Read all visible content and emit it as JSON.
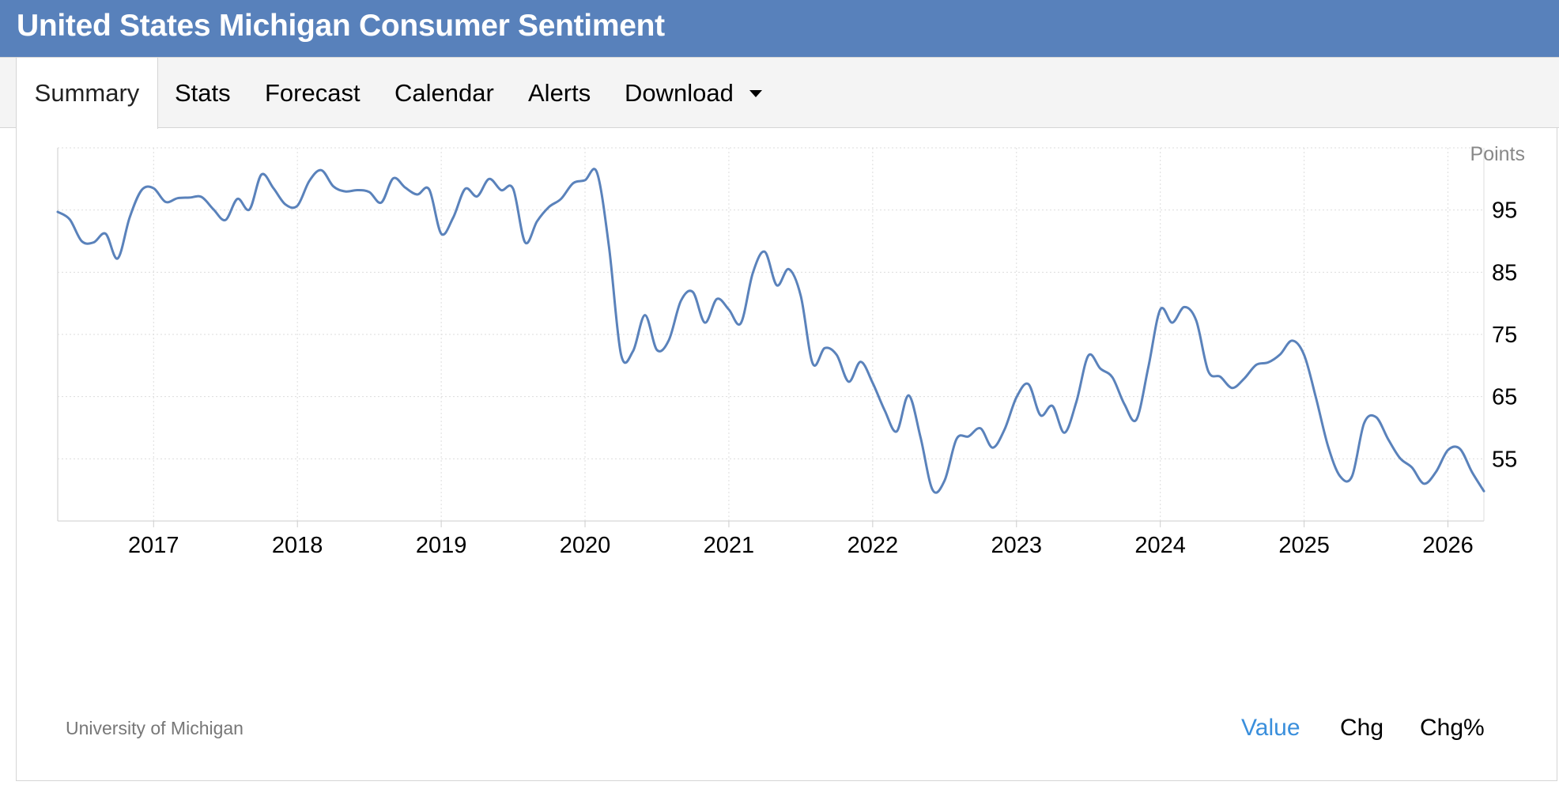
{
  "page": {
    "title": "United States Michigan Consumer Sentiment",
    "tabs": [
      "Summary",
      "Stats",
      "Forecast",
      "Calendar",
      "Alerts",
      "Download"
    ],
    "active_tab": "Summary",
    "source": "University of Michigan",
    "toggles": [
      "Value",
      "Chg",
      "Chg%"
    ],
    "active_toggle": "Value"
  },
  "colors": {
    "header_bg": "#5881bb",
    "line": "#5a82bb",
    "active_toggle": "#3a8fdc",
    "grid": "#dddddd"
  },
  "chart_data": {
    "type": "line",
    "unit": "Points",
    "x_ticks": [
      "2017",
      "2018",
      "2019",
      "2020",
      "2021",
      "2022",
      "2023",
      "2024",
      "2025",
      "2026"
    ],
    "y_ticks": [
      55,
      65,
      75,
      85,
      95
    ],
    "ylim": [
      45,
      105
    ],
    "xlim": [
      "2016-05",
      "2026-04"
    ],
    "grid": "dotted",
    "series": [
      {
        "x": [
          "2016-05",
          "2016-06",
          "2016-07",
          "2016-08",
          "2016-09",
          "2016-10",
          "2016-11",
          "2016-12",
          "2017-01",
          "2017-02",
          "2017-03",
          "2017-04",
          "2017-05",
          "2017-06",
          "2017-07",
          "2017-08",
          "2017-09",
          "2017-10",
          "2017-11",
          "2017-12",
          "2018-01",
          "2018-02",
          "2018-03",
          "2018-04",
          "2018-05",
          "2018-06",
          "2018-07",
          "2018-08",
          "2018-09",
          "2018-10",
          "2018-11",
          "2018-12",
          "2019-01",
          "2019-02",
          "2019-03",
          "2019-04",
          "2019-05",
          "2019-06",
          "2019-07",
          "2019-08",
          "2019-09",
          "2019-10",
          "2019-11",
          "2019-12",
          "2020-01",
          "2020-02",
          "2020-03",
          "2020-04",
          "2020-05",
          "2020-06",
          "2020-07",
          "2020-08",
          "2020-09",
          "2020-10",
          "2020-11",
          "2020-12",
          "2021-01",
          "2021-02",
          "2021-03",
          "2021-04",
          "2021-05",
          "2021-06",
          "2021-07",
          "2021-08",
          "2021-09",
          "2021-10",
          "2021-11",
          "2021-12",
          "2022-01",
          "2022-02",
          "2022-03",
          "2022-04",
          "2022-05",
          "2022-06",
          "2022-07",
          "2022-08",
          "2022-09",
          "2022-10",
          "2022-11",
          "2022-12",
          "2023-01",
          "2023-02",
          "2023-03",
          "2023-04",
          "2023-05",
          "2023-06",
          "2023-07",
          "2023-08",
          "2023-09",
          "2023-10",
          "2023-11",
          "2023-12",
          "2024-01",
          "2024-02",
          "2024-03",
          "2024-04",
          "2024-05",
          "2024-06",
          "2024-07",
          "2024-08",
          "2024-09",
          "2024-10",
          "2024-11",
          "2024-12",
          "2025-01",
          "2025-02",
          "2025-03",
          "2025-04",
          "2025-05",
          "2025-06",
          "2025-07",
          "2025-08",
          "2025-09",
          "2025-10",
          "2025-11",
          "2025-12",
          "2026-01",
          "2026-02",
          "2026-03",
          "2026-04"
        ],
        "values": [
          94.7,
          93.5,
          90.0,
          89.8,
          91.2,
          87.2,
          93.8,
          98.2,
          98.5,
          96.3,
          96.9,
          97.0,
          97.1,
          95.1,
          93.4,
          96.8,
          95.1,
          100.7,
          98.5,
          95.9,
          95.7,
          99.7,
          101.4,
          98.8,
          98.0,
          98.2,
          97.9,
          96.2,
          100.1,
          98.6,
          97.5,
          98.3,
          91.2,
          93.8,
          98.4,
          97.2,
          100.0,
          98.2,
          98.4,
          89.8,
          93.2,
          95.5,
          96.8,
          99.3,
          99.8,
          101.0,
          89.1,
          71.8,
          72.3,
          78.1,
          72.5,
          74.1,
          80.4,
          81.8,
          76.9,
          80.7,
          79.0,
          76.8,
          84.9,
          88.3,
          82.9,
          85.5,
          81.2,
          70.3,
          72.8,
          71.7,
          67.4,
          70.6,
          67.2,
          62.8,
          59.4,
          65.2,
          58.4,
          50.0,
          51.5,
          58.2,
          58.6,
          59.9,
          56.8,
          59.7,
          64.9,
          67.0,
          62.0,
          63.5,
          59.2,
          64.2,
          71.6,
          69.5,
          68.1,
          63.8,
          61.3,
          69.7,
          79.0,
          76.9,
          79.4,
          77.2,
          69.1,
          68.2,
          66.4,
          67.9,
          70.1,
          70.5,
          71.8,
          74.0,
          71.7,
          64.7,
          57.0,
          52.2,
          52.2,
          60.7,
          61.7,
          58.2,
          55.1,
          53.6,
          51.0,
          52.9,
          56.4,
          56.6,
          52.9,
          49.8
        ]
      }
    ]
  }
}
